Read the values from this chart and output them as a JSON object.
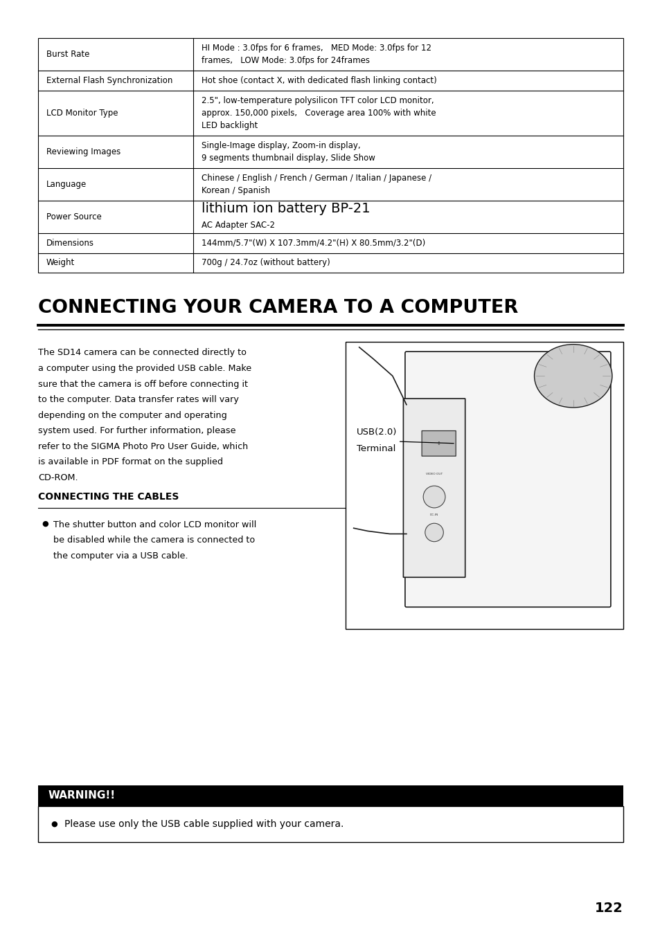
{
  "page_bg": "#ffffff",
  "table_rows": [
    {
      "label": "Burst Rate",
      "value": "HI Mode : 3.0fps for 6 frames,   MED Mode: 3.0fps for 12\nframes,   LOW Mode: 3.0fps for 24frames",
      "label_lines": 1,
      "value_lines": 2
    },
    {
      "label": "External Flash Synchronization",
      "value": "Hot shoe (contact X, with dedicated flash linking contact)",
      "label_lines": 1,
      "value_lines": 1
    },
    {
      "label": "LCD Monitor Type",
      "value": "2.5\", low-temperature polysilicon TFT color LCD monitor,\napprox. 150,000 pixels,   Coverage area 100% with white\nLED backlight",
      "label_lines": 1,
      "value_lines": 3
    },
    {
      "label": "Reviewing Images",
      "value": "Single-Image display, Zoom-in display,\n9 segments thumbnail display, Slide Show",
      "label_lines": 1,
      "value_lines": 2
    },
    {
      "label": "Language",
      "value": "Chinese / English / French / German / Italian / Japanese /\nKorean / Spanish",
      "label_lines": 1,
      "value_lines": 2
    },
    {
      "label": "Power Source",
      "value_line1": "lithium ion battery BP-21",
      "value_line2": "AC Adapter SAC-2",
      "label_lines": 1,
      "value_lines": 2,
      "power_source": true
    },
    {
      "label": "Dimensions",
      "value": "144mm/5.7\"(W) X 107.3mm/4.2\"(H) X 80.5mm/3.2\"(D)",
      "label_lines": 1,
      "value_lines": 1
    },
    {
      "label": "Weight",
      "value": "700g / 24.7oz (without battery)",
      "label_lines": 1,
      "value_lines": 1
    }
  ],
  "section_title": "CONNECTING YOUR CAMERA TO A COMPUTER",
  "body_text_lines": [
    "The SD14 camera can be connected directly to",
    "a computer using the provided USB cable. Make",
    "sure that the camera is off before connecting it",
    "to the computer. Data transfer rates will vary",
    "depending on the computer and operating",
    "system used. For further information, please",
    "refer to the SIGMA Photo Pro User Guide, which",
    "is available in PDF format on the supplied",
    "CD-ROM."
  ],
  "usb_label_line1": "USB(2.0)",
  "usb_label_line2": "Terminal",
  "sub_heading": "CONNECTING THE CABLES",
  "bullet_text_lines": [
    "The shutter button and color LCD monitor will",
    "be disabled while the camera is connected to",
    "the computer via a USB cable."
  ],
  "warning_title": "WARNING!!",
  "warning_title_color": "#ffffff",
  "warning_text": "Please use only the USB cable supplied with your camera.",
  "page_number": "122"
}
